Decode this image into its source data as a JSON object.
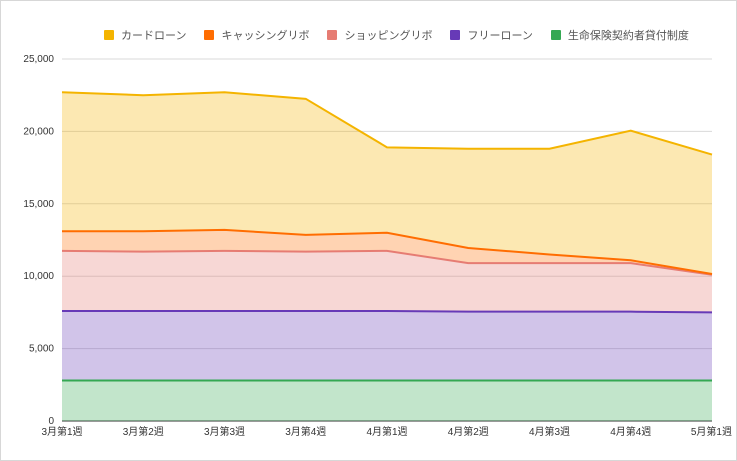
{
  "chart_data": {
    "type": "area",
    "stacked": true,
    "categories": [
      "3月第1週",
      "3月第2週",
      "3月第3週",
      "3月第4週",
      "4月第1週",
      "4月第2週",
      "4月第3週",
      "4月第4週",
      "5月第1週"
    ],
    "series": [
      {
        "name": "生命保険契約者貸付制度",
        "color": "#34A853",
        "values": [
          2800,
          2800,
          2800,
          2800,
          2800,
          2800,
          2800,
          2800,
          2800
        ]
      },
      {
        "name": "フリーローン",
        "color": "#673AB7",
        "values": [
          4800,
          4800,
          4800,
          4800,
          4800,
          4750,
          4750,
          4750,
          4700
        ]
      },
      {
        "name": "ショッピングリボ",
        "color": "#E67C73",
        "values": [
          4150,
          4100,
          4150,
          4100,
          4150,
          3350,
          3350,
          3350,
          2600
        ]
      },
      {
        "name": "キャッシングリボ",
        "color": "#FF6D01",
        "values": [
          1350,
          1400,
          1450,
          1150,
          1250,
          1050,
          600,
          200,
          50
        ]
      },
      {
        "name": "カードローン",
        "color": "#F4B400",
        "values": [
          9600,
          9400,
          9500,
          9400,
          5900,
          6850,
          7300,
          8950,
          8250
        ]
      }
    ],
    "legend_order": [
      "カードローン",
      "キャッシングリボ",
      "ショッピングリボ",
      "フリーローン",
      "生命保険契約者貸付制度"
    ],
    "y_ticks": [
      "0",
      "5,000",
      "10,000",
      "15,000",
      "20,000",
      "25,000"
    ],
    "ylim": [
      0,
      25000
    ],
    "grid": true,
    "legend_position": "top"
  }
}
